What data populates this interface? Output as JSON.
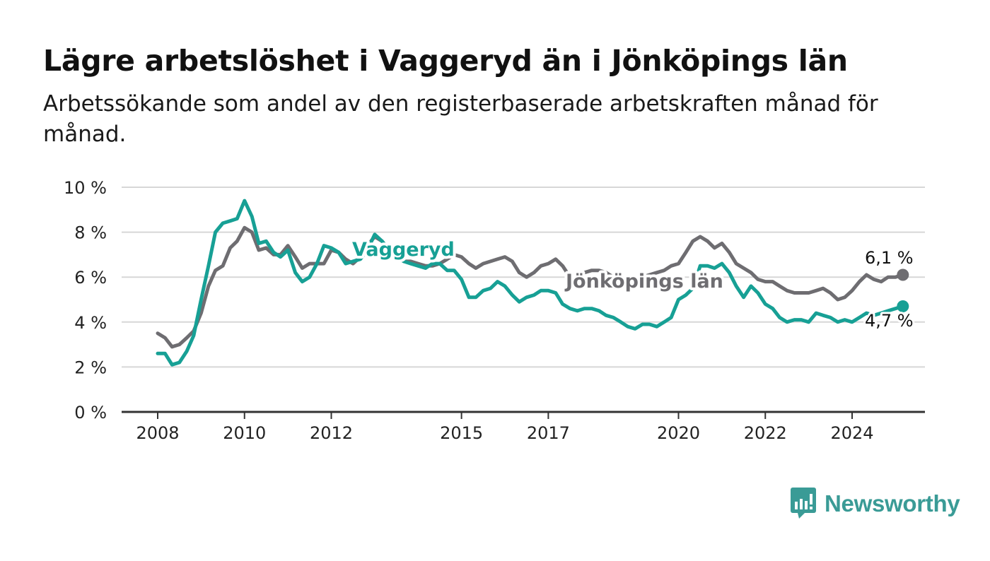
{
  "title": "Lägre arbetslöshet i Vaggeryd än i Jönköpings län",
  "subtitle": "Arbetssökande som andel av den registerbaserade arbetskraften månad för månad.",
  "brand": {
    "name": "Newsworthy",
    "color": "#3a9b96",
    "icon": "bar-chart-speech-icon"
  },
  "colors": {
    "vaggeryd": "#17a095",
    "jonkoping": "#6e6d71",
    "grid": "#d7d7d7",
    "axis": "#333333"
  },
  "chart_data": {
    "type": "line",
    "title": "Lägre arbetslöshet i Vaggeryd än i Jönköpings län",
    "subtitle": "Arbetssökande som andel av den registerbaserade arbetskraften månad för månad.",
    "xlabel": "",
    "ylabel": "",
    "x_ticks": [
      2008,
      2010,
      2012,
      2015,
      2017,
      2020,
      2022,
      2024
    ],
    "y_ticks": [
      0,
      2,
      4,
      6,
      8,
      10
    ],
    "y_tick_labels": [
      "0 %",
      "2 %",
      "4 %",
      "6 %",
      "8 %",
      "10 %"
    ],
    "xlim": [
      2007.35,
      2025.85
    ],
    "ylim": [
      0,
      10
    ],
    "grid": true,
    "series": [
      {
        "name": "Jönköpings län",
        "color": "#6e6d71",
        "end_label": "6,1 %",
        "points": [
          [
            2008.0,
            3.5
          ],
          [
            2008.17,
            3.3
          ],
          [
            2008.33,
            2.9
          ],
          [
            2008.5,
            3.0
          ],
          [
            2008.67,
            3.3
          ],
          [
            2008.83,
            3.6
          ],
          [
            2009.0,
            4.4
          ],
          [
            2009.17,
            5.6
          ],
          [
            2009.33,
            6.3
          ],
          [
            2009.5,
            6.5
          ],
          [
            2009.67,
            7.3
          ],
          [
            2009.83,
            7.6
          ],
          [
            2010.0,
            8.2
          ],
          [
            2010.17,
            8.0
          ],
          [
            2010.33,
            7.2
          ],
          [
            2010.5,
            7.3
          ],
          [
            2010.67,
            7.0
          ],
          [
            2010.83,
            7.0
          ],
          [
            2011.0,
            7.4
          ],
          [
            2011.17,
            6.9
          ],
          [
            2011.33,
            6.4
          ],
          [
            2011.5,
            6.6
          ],
          [
            2011.67,
            6.6
          ],
          [
            2011.83,
            6.6
          ],
          [
            2012.0,
            7.2
          ],
          [
            2012.17,
            7.1
          ],
          [
            2012.33,
            6.8
          ],
          [
            2012.5,
            6.6
          ],
          [
            2012.67,
            6.9
          ],
          [
            2012.83,
            7.4
          ],
          [
            2013.0,
            7.8
          ],
          [
            2013.17,
            7.6
          ],
          [
            2013.33,
            7.2
          ],
          [
            2013.5,
            6.9
          ],
          [
            2013.67,
            6.7
          ],
          [
            2013.83,
            6.7
          ],
          [
            2014.0,
            6.6
          ],
          [
            2014.17,
            6.5
          ],
          [
            2014.33,
            6.5
          ],
          [
            2014.5,
            6.6
          ],
          [
            2014.67,
            6.8
          ],
          [
            2014.83,
            7.0
          ],
          [
            2015.0,
            6.9
          ],
          [
            2015.17,
            6.6
          ],
          [
            2015.33,
            6.4
          ],
          [
            2015.5,
            6.6
          ],
          [
            2015.67,
            6.7
          ],
          [
            2015.83,
            6.8
          ],
          [
            2016.0,
            6.9
          ],
          [
            2016.17,
            6.7
          ],
          [
            2016.33,
            6.2
          ],
          [
            2016.5,
            6.0
          ],
          [
            2016.67,
            6.2
          ],
          [
            2016.83,
            6.5
          ],
          [
            2017.0,
            6.6
          ],
          [
            2017.17,
            6.8
          ],
          [
            2017.33,
            6.5
          ],
          [
            2017.5,
            6.0
          ],
          [
            2017.67,
            6.2
          ],
          [
            2017.83,
            6.2
          ],
          [
            2018.0,
            6.3
          ],
          [
            2018.17,
            6.3
          ],
          [
            2018.33,
            6.2
          ],
          [
            2018.5,
            6.0
          ],
          [
            2018.67,
            5.9
          ],
          [
            2018.83,
            5.8
          ],
          [
            2019.0,
            5.9
          ],
          [
            2019.17,
            6.0
          ],
          [
            2019.33,
            6.1
          ],
          [
            2019.5,
            6.2
          ],
          [
            2019.67,
            6.3
          ],
          [
            2019.83,
            6.5
          ],
          [
            2020.0,
            6.6
          ],
          [
            2020.17,
            7.1
          ],
          [
            2020.33,
            7.6
          ],
          [
            2020.5,
            7.8
          ],
          [
            2020.67,
            7.6
          ],
          [
            2020.83,
            7.3
          ],
          [
            2021.0,
            7.5
          ],
          [
            2021.17,
            7.1
          ],
          [
            2021.33,
            6.6
          ],
          [
            2021.5,
            6.4
          ],
          [
            2021.67,
            6.2
          ],
          [
            2021.83,
            5.9
          ],
          [
            2022.0,
            5.8
          ],
          [
            2022.17,
            5.8
          ],
          [
            2022.33,
            5.6
          ],
          [
            2022.5,
            5.4
          ],
          [
            2022.67,
            5.3
          ],
          [
            2022.83,
            5.3
          ],
          [
            2023.0,
            5.3
          ],
          [
            2023.17,
            5.4
          ],
          [
            2023.33,
            5.5
          ],
          [
            2023.5,
            5.3
          ],
          [
            2023.67,
            5.0
          ],
          [
            2023.83,
            5.1
          ],
          [
            2024.0,
            5.4
          ],
          [
            2024.17,
            5.8
          ],
          [
            2024.33,
            6.1
          ],
          [
            2024.5,
            5.9
          ],
          [
            2024.67,
            5.8
          ],
          [
            2024.83,
            6.0
          ],
          [
            2025.0,
            6.0
          ],
          [
            2025.17,
            6.1
          ]
        ]
      },
      {
        "name": "Vaggeryd",
        "color": "#17a095",
        "end_label": "4,7 %",
        "points": [
          [
            2008.0,
            2.6
          ],
          [
            2008.17,
            2.6
          ],
          [
            2008.33,
            2.1
          ],
          [
            2008.5,
            2.2
          ],
          [
            2008.67,
            2.7
          ],
          [
            2008.83,
            3.4
          ],
          [
            2009.0,
            5.0
          ],
          [
            2009.17,
            6.5
          ],
          [
            2009.33,
            8.0
          ],
          [
            2009.5,
            8.4
          ],
          [
            2009.67,
            8.5
          ],
          [
            2009.83,
            8.6
          ],
          [
            2010.0,
            9.4
          ],
          [
            2010.17,
            8.7
          ],
          [
            2010.33,
            7.5
          ],
          [
            2010.5,
            7.6
          ],
          [
            2010.67,
            7.1
          ],
          [
            2010.83,
            6.9
          ],
          [
            2011.0,
            7.2
          ],
          [
            2011.17,
            6.2
          ],
          [
            2011.33,
            5.8
          ],
          [
            2011.5,
            6.0
          ],
          [
            2011.67,
            6.6
          ],
          [
            2011.83,
            7.4
          ],
          [
            2012.0,
            7.3
          ],
          [
            2012.17,
            7.1
          ],
          [
            2012.33,
            6.6
          ],
          [
            2012.5,
            6.7
          ],
          [
            2012.67,
            6.8
          ],
          [
            2012.83,
            7.2
          ],
          [
            2013.0,
            7.9
          ],
          [
            2013.17,
            7.6
          ],
          [
            2013.33,
            7.2
          ],
          [
            2013.5,
            6.9
          ],
          [
            2013.67,
            6.7
          ],
          [
            2013.83,
            6.6
          ],
          [
            2014.0,
            6.5
          ],
          [
            2014.17,
            6.4
          ],
          [
            2014.33,
            6.6
          ],
          [
            2014.5,
            6.6
          ],
          [
            2014.67,
            6.3
          ],
          [
            2014.83,
            6.3
          ],
          [
            2015.0,
            5.9
          ],
          [
            2015.17,
            5.1
          ],
          [
            2015.33,
            5.1
          ],
          [
            2015.5,
            5.4
          ],
          [
            2015.67,
            5.5
          ],
          [
            2015.83,
            5.8
          ],
          [
            2016.0,
            5.6
          ],
          [
            2016.17,
            5.2
          ],
          [
            2016.33,
            4.9
          ],
          [
            2016.5,
            5.1
          ],
          [
            2016.67,
            5.2
          ],
          [
            2016.83,
            5.4
          ],
          [
            2017.0,
            5.4
          ],
          [
            2017.17,
            5.3
          ],
          [
            2017.33,
            4.8
          ],
          [
            2017.5,
            4.6
          ],
          [
            2017.67,
            4.5
          ],
          [
            2017.83,
            4.6
          ],
          [
            2018.0,
            4.6
          ],
          [
            2018.17,
            4.5
          ],
          [
            2018.33,
            4.3
          ],
          [
            2018.5,
            4.2
          ],
          [
            2018.67,
            4.0
          ],
          [
            2018.83,
            3.8
          ],
          [
            2019.0,
            3.7
          ],
          [
            2019.17,
            3.9
          ],
          [
            2019.33,
            3.9
          ],
          [
            2019.5,
            3.8
          ],
          [
            2019.67,
            4.0
          ],
          [
            2019.83,
            4.2
          ],
          [
            2020.0,
            5.0
          ],
          [
            2020.17,
            5.2
          ],
          [
            2020.33,
            5.5
          ],
          [
            2020.5,
            6.5
          ],
          [
            2020.67,
            6.5
          ],
          [
            2020.83,
            6.4
          ],
          [
            2021.0,
            6.6
          ],
          [
            2021.17,
            6.2
          ],
          [
            2021.33,
            5.6
          ],
          [
            2021.5,
            5.1
          ],
          [
            2021.67,
            5.6
          ],
          [
            2021.83,
            5.3
          ],
          [
            2022.0,
            4.8
          ],
          [
            2022.17,
            4.6
          ],
          [
            2022.33,
            4.2
          ],
          [
            2022.5,
            4.0
          ],
          [
            2022.67,
            4.1
          ],
          [
            2022.83,
            4.1
          ],
          [
            2023.0,
            4.0
          ],
          [
            2023.17,
            4.4
          ],
          [
            2023.33,
            4.3
          ],
          [
            2023.5,
            4.2
          ],
          [
            2023.67,
            4.0
          ],
          [
            2023.83,
            4.1
          ],
          [
            2024.0,
            4.0
          ],
          [
            2024.17,
            4.2
          ],
          [
            2024.33,
            4.4
          ],
          [
            2024.5,
            4.3
          ],
          [
            2024.67,
            4.4
          ],
          [
            2024.83,
            4.5
          ],
          [
            2025.0,
            4.6
          ],
          [
            2025.17,
            4.7
          ]
        ]
      }
    ]
  }
}
